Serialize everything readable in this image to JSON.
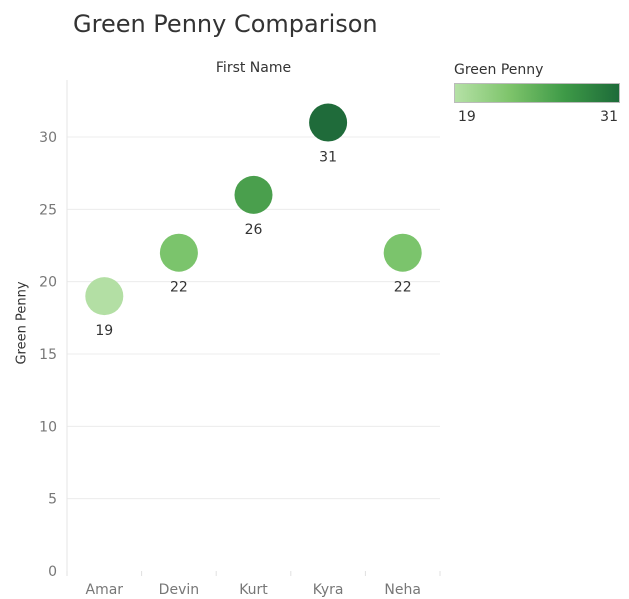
{
  "chart_data": {
    "type": "scatter",
    "title": "Green Penny Comparison",
    "column_header": "First Name",
    "ylabel": "Green Penny",
    "categories": [
      "Amar",
      "Devin",
      "Kurt",
      "Kyra",
      "Neha"
    ],
    "series": [
      {
        "values": [
          19,
          22,
          26,
          31,
          22
        ]
      }
    ],
    "ylim": [
      0,
      33
    ],
    "yticks": [
      0,
      5,
      10,
      15,
      20,
      25,
      30
    ],
    "grid": true,
    "color_legend": {
      "title": "Green Penny",
      "min": "19",
      "max": "31"
    },
    "colors": [
      "#b3dfa4",
      "#7bc46c",
      "#4a9f4d",
      "#1f6b3a",
      "#7bc46c"
    ]
  }
}
